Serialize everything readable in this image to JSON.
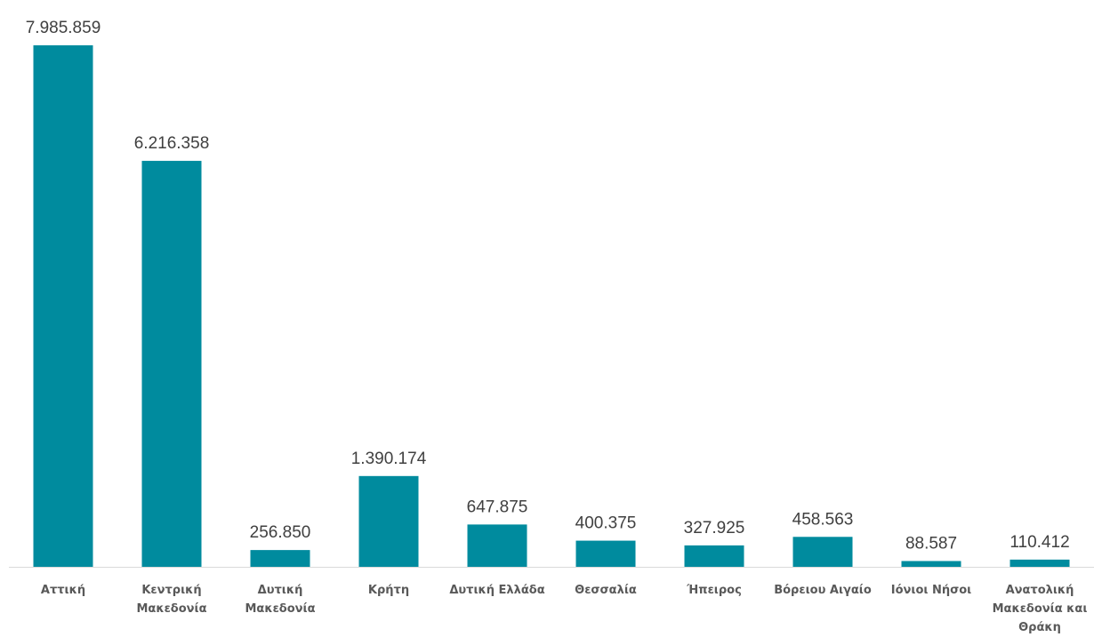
{
  "chart_data": {
    "type": "bar",
    "categories": [
      [
        "Αττική"
      ],
      [
        "Κεντρική",
        "Μακεδονία"
      ],
      [
        "Δυτική",
        "Μακεδονία"
      ],
      [
        "Κρήτη"
      ],
      [
        "Δυτική Ελλάδα"
      ],
      [
        "Θεσσαλία"
      ],
      [
        "Ήπειρος"
      ],
      [
        "Βόρειου Αιγαίο"
      ],
      [
        "Ιόνιοι Νήσοι"
      ],
      [
        "Ανατολική",
        "Μακεδονία και",
        "Θράκη"
      ]
    ],
    "values": [
      7985859,
      6216358,
      256850,
      1390174,
      647875,
      400375,
      327925,
      458563,
      88587,
      110412
    ],
    "value_labels": [
      "7.985.859",
      "6.216.358",
      "256.850",
      "1.390.174",
      "647.875",
      "400.375",
      "327.925",
      "458.563",
      "88.587",
      "110.412"
    ],
    "bar_color": "#008B9E",
    "axis_color": "#D9D9D9",
    "grid": false,
    "legend": "none"
  }
}
